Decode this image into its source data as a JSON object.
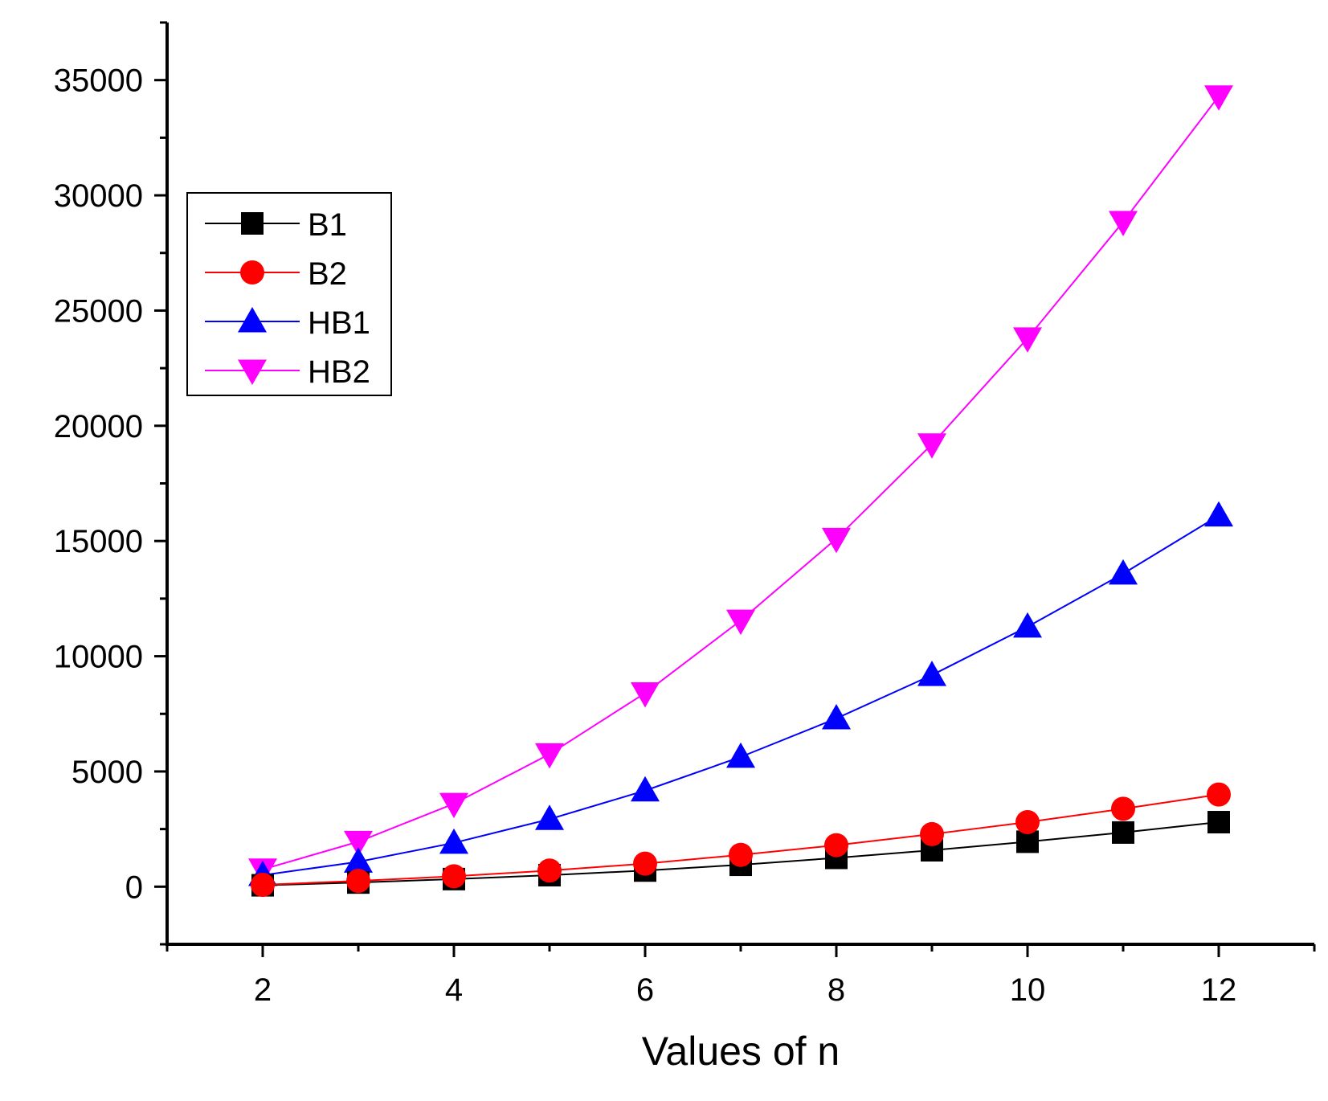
{
  "chart_data": {
    "type": "line",
    "title": "",
    "xlabel": "Values of n",
    "ylabel": "",
    "xlim": [
      1,
      13
    ],
    "ylim": [
      -2500,
      37500
    ],
    "xticks": [
      2,
      4,
      6,
      8,
      10,
      12
    ],
    "xtick_labels": [
      "2",
      "4",
      "6",
      "8",
      "10",
      "12"
    ],
    "yticks": [
      0,
      5000,
      10000,
      15000,
      20000,
      25000,
      30000,
      35000
    ],
    "ytick_labels": [
      "0",
      "5000",
      "10000",
      "15000",
      "20000",
      "25000",
      "30000",
      "35000"
    ],
    "grid": false,
    "legend_position": "upper-left",
    "x": [
      2,
      3,
      4,
      5,
      6,
      7,
      8,
      9,
      10,
      11,
      12
    ],
    "series": [
      {
        "name": "B1",
        "color": "#000000",
        "marker": "square",
        "values": [
          60,
          180,
          330,
          500,
          700,
          950,
          1250,
          1580,
          1950,
          2350,
          2800
        ]
      },
      {
        "name": "B2",
        "color": "#ff0000",
        "marker": "circle",
        "values": [
          80,
          250,
          450,
          700,
          1000,
          1380,
          1800,
          2280,
          2800,
          3380,
          4000
        ]
      },
      {
        "name": "HB1",
        "color": "#0000ff",
        "marker": "triangle-up",
        "values": [
          500,
          1080,
          1900,
          2930,
          4170,
          5630,
          7300,
          9180,
          11280,
          13580,
          16100
        ]
      },
      {
        "name": "HB2",
        "color": "#ff00ff",
        "marker": "triangle-down",
        "values": [
          750,
          1950,
          3600,
          5750,
          8400,
          11550,
          15100,
          19200,
          23800,
          28850,
          34300
        ]
      }
    ]
  }
}
